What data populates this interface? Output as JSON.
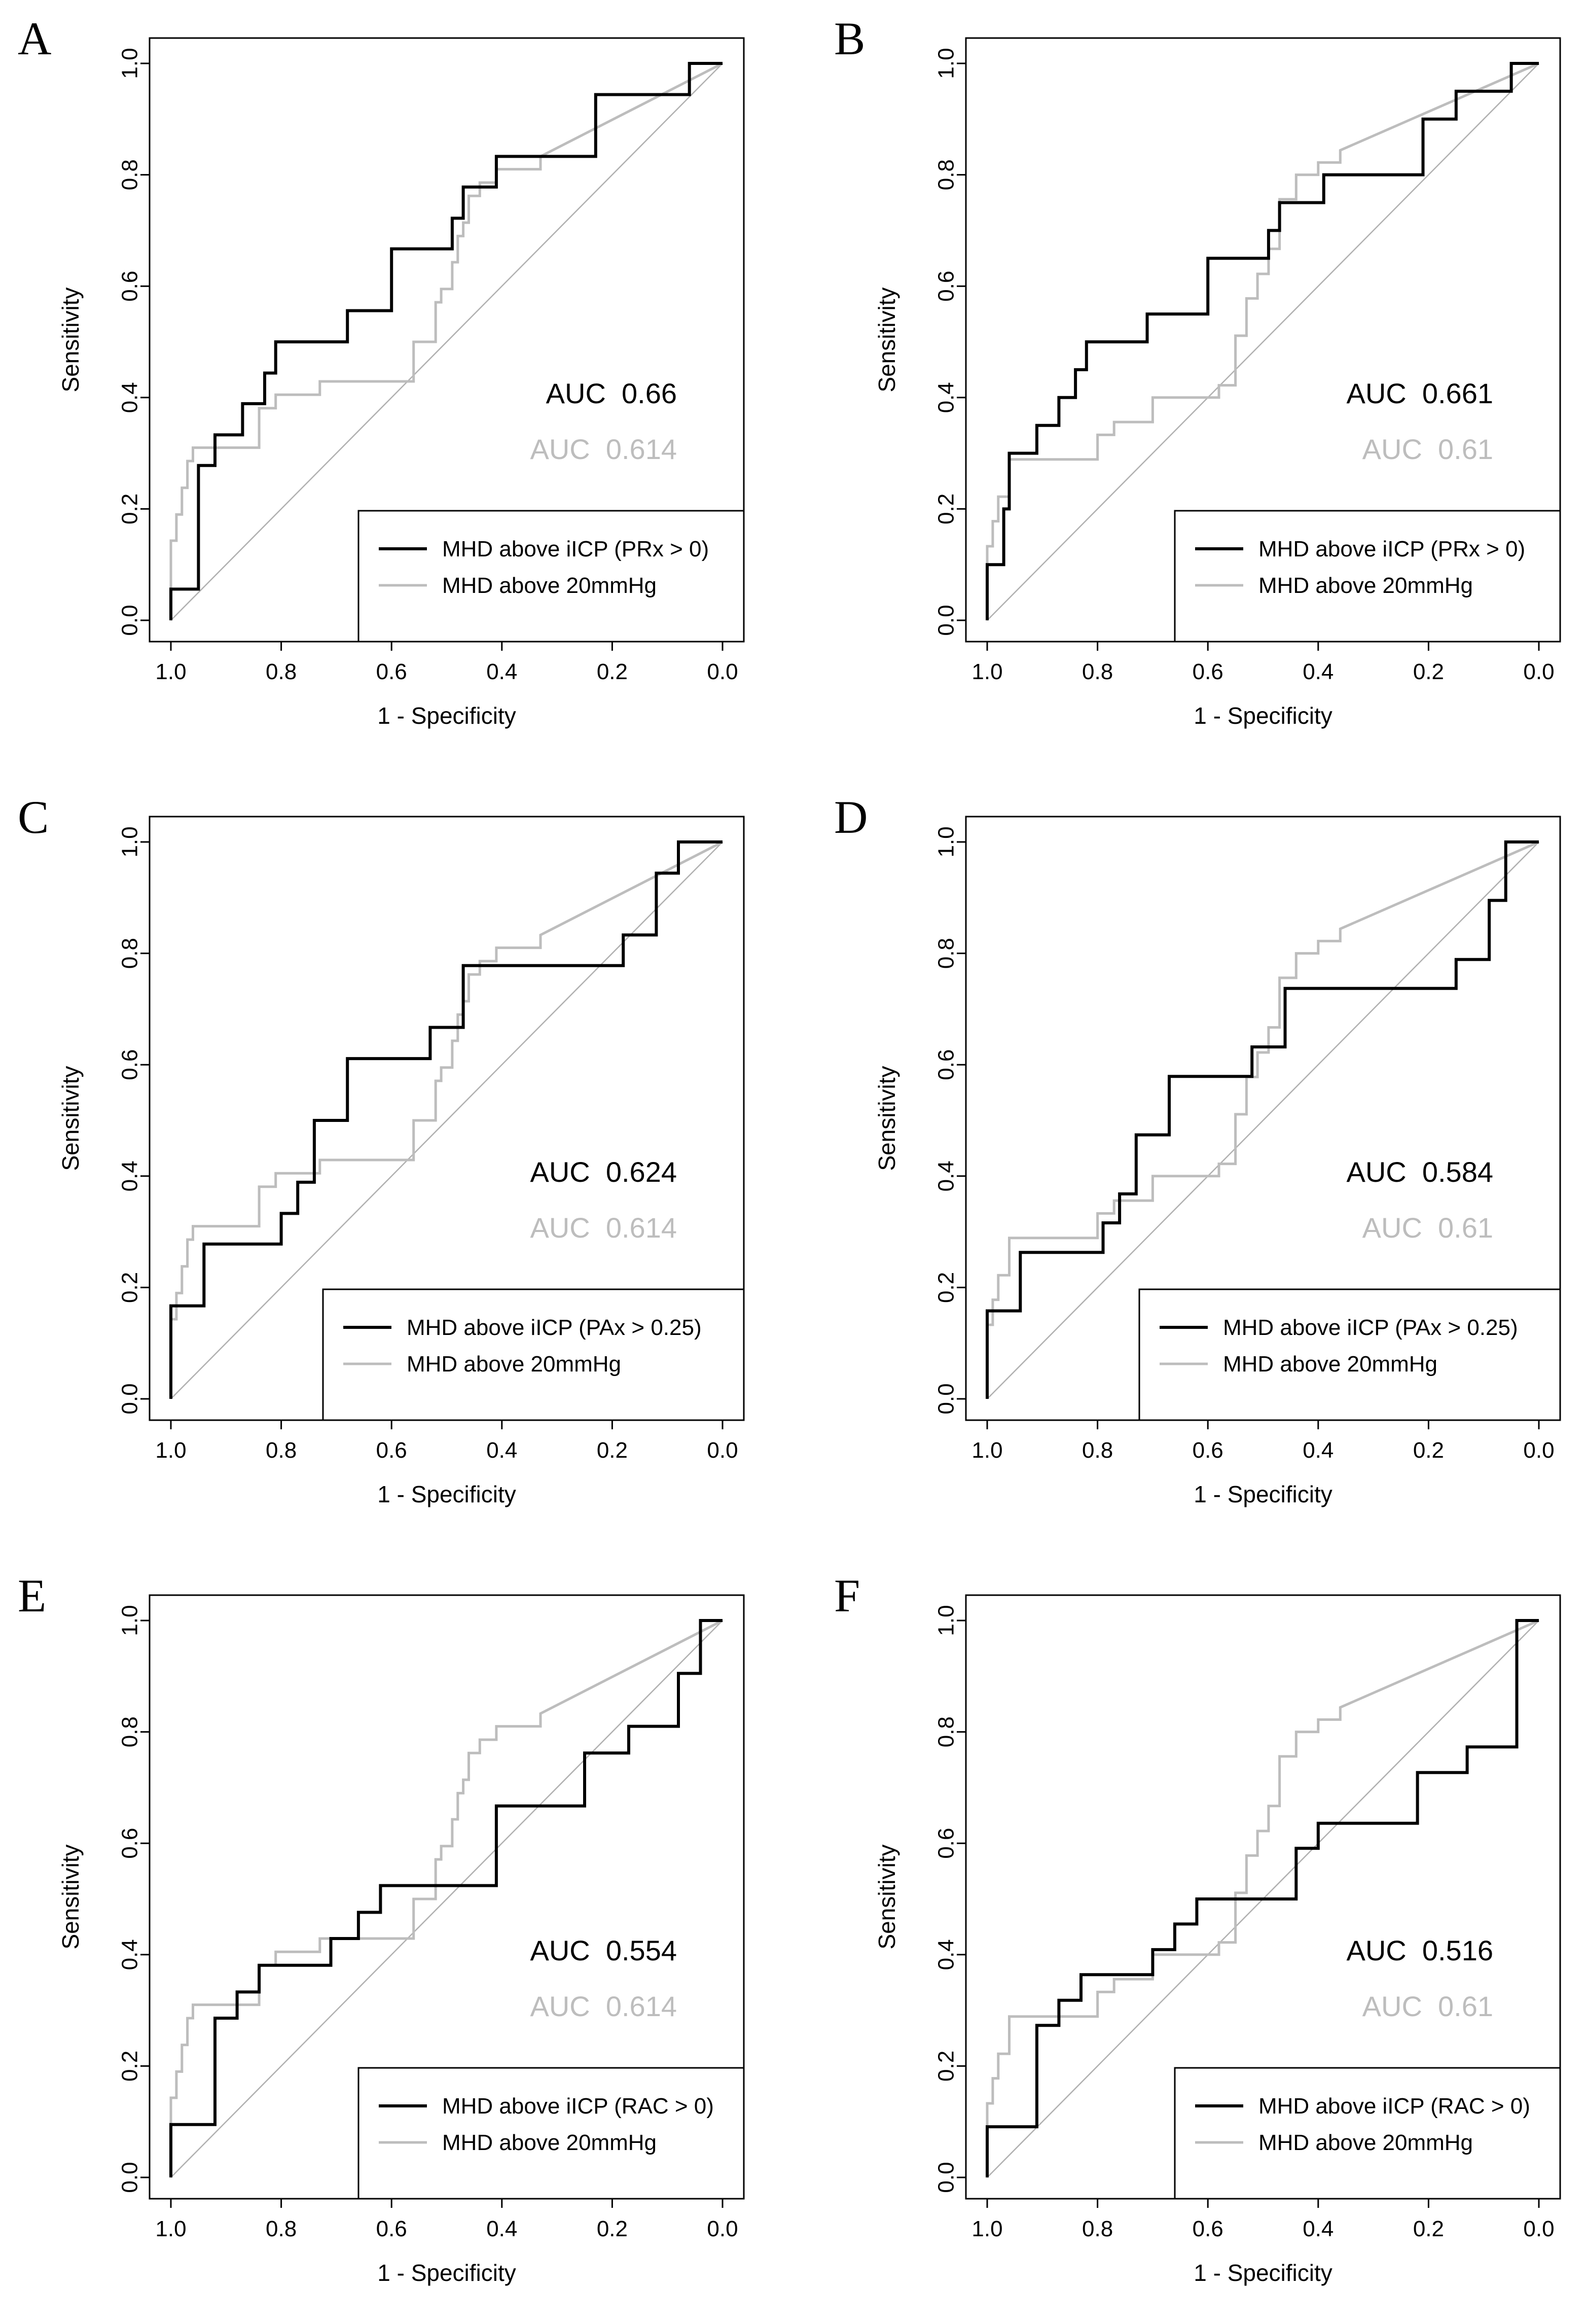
{
  "colors": {
    "primary": "#000000",
    "secondary": "#bdbdbd",
    "diagonal": "#b0b0b0"
  },
  "axis_common": {
    "xlabel": "1 - Specificity",
    "ylabel": "Sensitivity",
    "xlim": [
      1.0,
      0.0
    ],
    "ylim": [
      0.0,
      1.0
    ],
    "x_ticks": [
      "1.0",
      "0.8",
      "0.6",
      "0.4",
      "0.2",
      "0.0"
    ],
    "y_ticks": [
      "0.0",
      "0.2",
      "0.4",
      "0.6",
      "0.8",
      "1.0"
    ]
  },
  "chart_data": [
    {
      "panel": "A",
      "type": "line",
      "xlabel": "1 - Specificity",
      "ylabel": "Sensitivity",
      "xlim": [
        1.0,
        0.0
      ],
      "ylim": [
        0.0,
        1.0
      ],
      "x_ticks": [
        "1.0",
        "0.8",
        "0.6",
        "0.4",
        "0.2",
        "0.0"
      ],
      "y_ticks": [
        "0.0",
        "0.2",
        "0.4",
        "0.6",
        "0.8",
        "1.0"
      ],
      "legend_position": "bottom-right",
      "auc_primary": "AUC  0.66",
      "auc_secondary": "AUC  0.614",
      "series": [
        {
          "name": "MHD above iICP (PRx > 0)",
          "color": "#000000",
          "x": [
            1.0,
            1.0,
            0.95,
            0.95,
            0.92,
            0.92,
            0.87,
            0.87,
            0.83,
            0.83,
            0.81,
            0.81,
            0.68,
            0.68,
            0.6,
            0.6,
            0.49,
            0.49,
            0.47,
            0.47,
            0.41,
            0.41,
            0.23,
            0.23,
            0.06,
            0.06,
            0.0
          ],
          "y": [
            0.0,
            0.056,
            0.056,
            0.278,
            0.278,
            0.333,
            0.333,
            0.389,
            0.389,
            0.444,
            0.444,
            0.5,
            0.5,
            0.556,
            0.556,
            0.667,
            0.667,
            0.722,
            0.722,
            0.778,
            0.778,
            0.833,
            0.833,
            0.944,
            0.944,
            1.0,
            1.0
          ]
        },
        {
          "name": "MHD above 20mmHg",
          "color": "#bdbdbd",
          "x": [
            1.0,
            1.0,
            0.99,
            0.99,
            0.98,
            0.98,
            0.97,
            0.97,
            0.96,
            0.96,
            0.84,
            0.84,
            0.81,
            0.81,
            0.73,
            0.73,
            0.7,
            0.7,
            0.56,
            0.56,
            0.52,
            0.52,
            0.51,
            0.51,
            0.49,
            0.49,
            0.48,
            0.48,
            0.47,
            0.47,
            0.46,
            0.46,
            0.44,
            0.44,
            0.41,
            0.41,
            0.33,
            0.33,
            0.0
          ],
          "y": [
            0.0,
            0.143,
            0.143,
            0.19,
            0.19,
            0.238,
            0.238,
            0.286,
            0.286,
            0.31,
            0.31,
            0.381,
            0.381,
            0.405,
            0.405,
            0.429,
            0.429,
            0.429,
            0.429,
            0.5,
            0.5,
            0.571,
            0.571,
            0.595,
            0.595,
            0.643,
            0.643,
            0.69,
            0.69,
            0.714,
            0.714,
            0.762,
            0.762,
            0.786,
            0.786,
            0.81,
            0.81,
            0.833,
            1.0
          ]
        }
      ]
    },
    {
      "panel": "B",
      "type": "line",
      "xlabel": "1 - Specificity",
      "ylabel": "Sensitivity",
      "xlim": [
        1.0,
        0.0
      ],
      "ylim": [
        0.0,
        1.0
      ],
      "x_ticks": [
        "1.0",
        "0.8",
        "0.6",
        "0.4",
        "0.2",
        "0.0"
      ],
      "y_ticks": [
        "0.0",
        "0.2",
        "0.4",
        "0.6",
        "0.8",
        "1.0"
      ],
      "legend_position": "bottom-right",
      "auc_primary": "AUC  0.661",
      "auc_secondary": "AUC  0.61",
      "series": [
        {
          "name": "MHD above iICP (PRx > 0)",
          "color": "#000000",
          "x": [
            1.0,
            1.0,
            0.97,
            0.97,
            0.96,
            0.96,
            0.91,
            0.91,
            0.87,
            0.87,
            0.84,
            0.84,
            0.82,
            0.82,
            0.71,
            0.71,
            0.6,
            0.6,
            0.49,
            0.49,
            0.47,
            0.47,
            0.39,
            0.39,
            0.21,
            0.21,
            0.15,
            0.15,
            0.05,
            0.05,
            0.0
          ],
          "y": [
            0.0,
            0.1,
            0.1,
            0.2,
            0.2,
            0.3,
            0.3,
            0.35,
            0.35,
            0.4,
            0.4,
            0.45,
            0.45,
            0.5,
            0.5,
            0.55,
            0.55,
            0.65,
            0.65,
            0.7,
            0.7,
            0.75,
            0.75,
            0.8,
            0.8,
            0.9,
            0.9,
            0.95,
            0.95,
            1.0,
            1.0
          ]
        },
        {
          "name": "MHD above 20mmHg",
          "color": "#bdbdbd",
          "x": [
            1.0,
            1.0,
            0.99,
            0.99,
            0.98,
            0.98,
            0.96,
            0.96,
            0.8,
            0.8,
            0.77,
            0.77,
            0.7,
            0.7,
            0.58,
            0.58,
            0.55,
            0.55,
            0.53,
            0.53,
            0.51,
            0.51,
            0.49,
            0.49,
            0.47,
            0.47,
            0.44,
            0.44,
            0.4,
            0.4,
            0.36,
            0.36,
            0.0
          ],
          "y": [
            0.0,
            0.133,
            0.133,
            0.178,
            0.178,
            0.222,
            0.222,
            0.289,
            0.289,
            0.333,
            0.333,
            0.356,
            0.356,
            0.4,
            0.4,
            0.422,
            0.422,
            0.511,
            0.511,
            0.578,
            0.578,
            0.622,
            0.622,
            0.667,
            0.667,
            0.756,
            0.756,
            0.8,
            0.8,
            0.822,
            0.822,
            0.844,
            1.0
          ]
        }
      ]
    },
    {
      "panel": "C",
      "type": "line",
      "xlabel": "1 - Specificity",
      "ylabel": "Sensitivity",
      "xlim": [
        1.0,
        0.0
      ],
      "ylim": [
        0.0,
        1.0
      ],
      "x_ticks": [
        "1.0",
        "0.8",
        "0.6",
        "0.4",
        "0.2",
        "0.0"
      ],
      "y_ticks": [
        "0.0",
        "0.2",
        "0.4",
        "0.6",
        "0.8",
        "1.0"
      ],
      "legend_position": "bottom-right",
      "auc_primary": "AUC  0.624",
      "auc_secondary": "AUC  0.614",
      "series": [
        {
          "name": "MHD above iICP (PAx > 0.25)",
          "color": "#000000",
          "x": [
            1.0,
            1.0,
            0.94,
            0.94,
            0.8,
            0.8,
            0.77,
            0.77,
            0.74,
            0.74,
            0.68,
            0.68,
            0.53,
            0.53,
            0.47,
            0.47,
            0.18,
            0.18,
            0.12,
            0.12,
            0.08,
            0.08,
            0.0
          ],
          "y": [
            0.0,
            0.167,
            0.167,
            0.278,
            0.278,
            0.333,
            0.333,
            0.389,
            0.389,
            0.5,
            0.5,
            0.611,
            0.611,
            0.667,
            0.667,
            0.778,
            0.778,
            0.833,
            0.833,
            0.944,
            0.944,
            1.0,
            1.0
          ]
        },
        {
          "name": "MHD above 20mmHg",
          "color": "#bdbdbd",
          "x": [
            1.0,
            1.0,
            0.99,
            0.99,
            0.98,
            0.98,
            0.97,
            0.97,
            0.96,
            0.96,
            0.84,
            0.84,
            0.81,
            0.81,
            0.73,
            0.73,
            0.7,
            0.7,
            0.56,
            0.56,
            0.52,
            0.52,
            0.51,
            0.51,
            0.49,
            0.49,
            0.48,
            0.48,
            0.47,
            0.47,
            0.46,
            0.46,
            0.44,
            0.44,
            0.41,
            0.41,
            0.33,
            0.33,
            0.0
          ],
          "y": [
            0.0,
            0.143,
            0.143,
            0.19,
            0.19,
            0.238,
            0.238,
            0.286,
            0.286,
            0.31,
            0.31,
            0.381,
            0.381,
            0.405,
            0.405,
            0.429,
            0.429,
            0.429,
            0.429,
            0.5,
            0.5,
            0.571,
            0.571,
            0.595,
            0.595,
            0.643,
            0.643,
            0.69,
            0.69,
            0.714,
            0.714,
            0.762,
            0.762,
            0.786,
            0.786,
            0.81,
            0.81,
            0.833,
            1.0
          ]
        }
      ]
    },
    {
      "panel": "D",
      "type": "line",
      "xlabel": "1 - Specificity",
      "ylabel": "Sensitivity",
      "xlim": [
        1.0,
        0.0
      ],
      "ylim": [
        0.0,
        1.0
      ],
      "x_ticks": [
        "1.0",
        "0.8",
        "0.6",
        "0.4",
        "0.2",
        "0.0"
      ],
      "y_ticks": [
        "0.0",
        "0.2",
        "0.4",
        "0.6",
        "0.8",
        "1.0"
      ],
      "legend_position": "bottom-right",
      "auc_primary": "AUC  0.584",
      "auc_secondary": "AUC  0.61",
      "series": [
        {
          "name": "MHD above iICP (PAx > 0.25)",
          "color": "#000000",
          "x": [
            1.0,
            1.0,
            0.94,
            0.94,
            0.79,
            0.79,
            0.76,
            0.76,
            0.73,
            0.73,
            0.67,
            0.67,
            0.52,
            0.52,
            0.46,
            0.46,
            0.15,
            0.15,
            0.09,
            0.09,
            0.06,
            0.06,
            0.0
          ],
          "y": [
            0.0,
            0.158,
            0.158,
            0.263,
            0.263,
            0.316,
            0.316,
            0.368,
            0.368,
            0.474,
            0.474,
            0.579,
            0.579,
            0.632,
            0.632,
            0.737,
            0.737,
            0.789,
            0.789,
            0.895,
            0.895,
            1.0,
            1.0
          ]
        },
        {
          "name": "MHD above 20mmHg",
          "color": "#bdbdbd",
          "x": [
            1.0,
            1.0,
            0.99,
            0.99,
            0.98,
            0.98,
            0.96,
            0.96,
            0.8,
            0.8,
            0.77,
            0.77,
            0.7,
            0.7,
            0.58,
            0.58,
            0.55,
            0.55,
            0.53,
            0.53,
            0.51,
            0.51,
            0.49,
            0.49,
            0.47,
            0.47,
            0.44,
            0.44,
            0.4,
            0.4,
            0.36,
            0.36,
            0.0
          ],
          "y": [
            0.0,
            0.133,
            0.133,
            0.178,
            0.178,
            0.222,
            0.222,
            0.289,
            0.289,
            0.333,
            0.333,
            0.356,
            0.356,
            0.4,
            0.4,
            0.422,
            0.422,
            0.511,
            0.511,
            0.578,
            0.578,
            0.622,
            0.622,
            0.667,
            0.667,
            0.756,
            0.756,
            0.8,
            0.8,
            0.822,
            0.822,
            0.844,
            1.0
          ]
        }
      ]
    },
    {
      "panel": "E",
      "type": "line",
      "xlabel": "1 - Specificity",
      "ylabel": "Sensitivity",
      "xlim": [
        1.0,
        0.0
      ],
      "ylim": [
        0.0,
        1.0
      ],
      "x_ticks": [
        "1.0",
        "0.8",
        "0.6",
        "0.4",
        "0.2",
        "0.0"
      ],
      "y_ticks": [
        "0.0",
        "0.2",
        "0.4",
        "0.6",
        "0.8",
        "1.0"
      ],
      "legend_position": "bottom-right",
      "auc_primary": "AUC  0.554",
      "auc_secondary": "AUC  0.614",
      "series": [
        {
          "name": "MHD above iICP (RAC > 0)",
          "color": "#000000",
          "x": [
            1.0,
            1.0,
            0.92,
            0.92,
            0.88,
            0.88,
            0.84,
            0.84,
            0.71,
            0.71,
            0.66,
            0.66,
            0.62,
            0.62,
            0.41,
            0.41,
            0.25,
            0.25,
            0.17,
            0.17,
            0.08,
            0.08,
            0.04,
            0.04,
            0.0
          ],
          "y": [
            0.0,
            0.095,
            0.095,
            0.286,
            0.286,
            0.333,
            0.333,
            0.381,
            0.381,
            0.429,
            0.429,
            0.476,
            0.476,
            0.524,
            0.524,
            0.667,
            0.667,
            0.762,
            0.762,
            0.81,
            0.81,
            0.905,
            0.905,
            1.0,
            1.0
          ]
        },
        {
          "name": "MHD above 20mmHg",
          "color": "#bdbdbd",
          "x": [
            1.0,
            1.0,
            0.99,
            0.99,
            0.98,
            0.98,
            0.97,
            0.97,
            0.96,
            0.96,
            0.84,
            0.84,
            0.81,
            0.81,
            0.73,
            0.73,
            0.7,
            0.7,
            0.56,
            0.56,
            0.52,
            0.52,
            0.51,
            0.51,
            0.49,
            0.49,
            0.48,
            0.48,
            0.47,
            0.47,
            0.46,
            0.46,
            0.44,
            0.44,
            0.41,
            0.41,
            0.33,
            0.33,
            0.0
          ],
          "y": [
            0.0,
            0.143,
            0.143,
            0.19,
            0.19,
            0.238,
            0.238,
            0.286,
            0.286,
            0.31,
            0.31,
            0.381,
            0.381,
            0.405,
            0.405,
            0.429,
            0.429,
            0.429,
            0.429,
            0.5,
            0.5,
            0.571,
            0.571,
            0.595,
            0.595,
            0.643,
            0.643,
            0.69,
            0.69,
            0.714,
            0.714,
            0.762,
            0.762,
            0.786,
            0.786,
            0.81,
            0.81,
            0.833,
            1.0
          ]
        }
      ]
    },
    {
      "panel": "F",
      "type": "line",
      "xlabel": "1 - Specificity",
      "ylabel": "Sensitivity",
      "xlim": [
        1.0,
        0.0
      ],
      "ylim": [
        0.0,
        1.0
      ],
      "x_ticks": [
        "1.0",
        "0.8",
        "0.6",
        "0.4",
        "0.2",
        "0.0"
      ],
      "y_ticks": [
        "0.0",
        "0.2",
        "0.4",
        "0.6",
        "0.8",
        "1.0"
      ],
      "legend_position": "bottom-right",
      "auc_primary": "AUC  0.516",
      "auc_secondary": "AUC  0.61",
      "series": [
        {
          "name": "MHD above iICP (RAC > 0)",
          "color": "#000000",
          "x": [
            1.0,
            1.0,
            0.91,
            0.91,
            0.87,
            0.87,
            0.83,
            0.83,
            0.7,
            0.7,
            0.66,
            0.66,
            0.62,
            0.62,
            0.44,
            0.44,
            0.4,
            0.4,
            0.22,
            0.22,
            0.13,
            0.13,
            0.04,
            0.04,
            0.0
          ],
          "y": [
            0.0,
            0.091,
            0.091,
            0.273,
            0.273,
            0.318,
            0.318,
            0.364,
            0.364,
            0.409,
            0.409,
            0.455,
            0.455,
            0.5,
            0.5,
            0.591,
            0.591,
            0.636,
            0.636,
            0.727,
            0.727,
            0.773,
            0.773,
            1.0,
            1.0
          ]
        },
        {
          "name": "MHD above 20mmHg",
          "color": "#bdbdbd",
          "x": [
            1.0,
            1.0,
            0.99,
            0.99,
            0.98,
            0.98,
            0.96,
            0.96,
            0.8,
            0.8,
            0.77,
            0.77,
            0.7,
            0.7,
            0.58,
            0.58,
            0.55,
            0.55,
            0.53,
            0.53,
            0.51,
            0.51,
            0.49,
            0.49,
            0.47,
            0.47,
            0.44,
            0.44,
            0.4,
            0.4,
            0.36,
            0.36,
            0.0
          ],
          "y": [
            0.0,
            0.133,
            0.133,
            0.178,
            0.178,
            0.222,
            0.222,
            0.289,
            0.289,
            0.333,
            0.333,
            0.356,
            0.356,
            0.4,
            0.4,
            0.422,
            0.422,
            0.511,
            0.511,
            0.578,
            0.578,
            0.622,
            0.622,
            0.667,
            0.667,
            0.756,
            0.756,
            0.8,
            0.8,
            0.822,
            0.822,
            0.844,
            1.0
          ]
        }
      ]
    }
  ]
}
